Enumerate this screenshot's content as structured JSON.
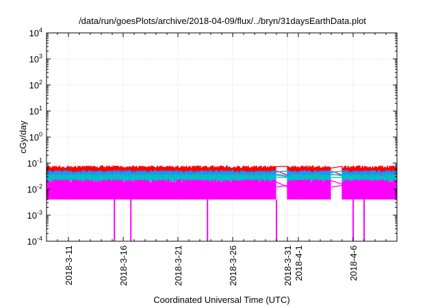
{
  "chart_data": {
    "type": "line",
    "title": "/data/run/goesPlots/archive/2018-04-09/flux/../bryn/31daysEarthData.plot",
    "xlabel": "Coordinated Universal Time (UTC)",
    "ylabel": "cGy/day",
    "yscale": "log",
    "ylim": [
      0.0001,
      10000
    ],
    "y_ticks": [
      {
        "base": "10",
        "exp": "-4",
        "value": 0.0001
      },
      {
        "base": "10",
        "exp": "-3",
        "value": 0.001
      },
      {
        "base": "10",
        "exp": "-2",
        "value": 0.01
      },
      {
        "base": "10",
        "exp": "-1",
        "value": 0.1
      },
      {
        "base": "10",
        "exp": "0",
        "value": 1
      },
      {
        "base": "10",
        "exp": "1",
        "value": 10
      },
      {
        "base": "10",
        "exp": "2",
        "value": 100
      },
      {
        "base": "10",
        "exp": "3",
        "value": 1000
      },
      {
        "base": "10",
        "exp": "4",
        "value": 10000
      }
    ],
    "xlim": [
      "2018-03-09",
      "2018-04-10"
    ],
    "x_ticks": [
      {
        "label": "2018-3-11",
        "date": "2018-03-11"
      },
      {
        "label": "2018-3-16",
        "date": "2018-03-16"
      },
      {
        "label": "2018-3-21",
        "date": "2018-03-21"
      },
      {
        "label": "2018-3-26",
        "date": "2018-03-26"
      },
      {
        "label": "2018-3-31",
        "date": "2018-03-31"
      },
      {
        "label": "2018-4-1",
        "date": "2018-04-01"
      },
      {
        "label": "2018-4-6",
        "date": "2018-04-06"
      }
    ],
    "grid": true,
    "data_gaps": [
      {
        "start": "2018-03-30",
        "end": "2018-03-31"
      },
      {
        "start": "2018-04-04",
        "end": "2018-04-05"
      }
    ],
    "series": [
      {
        "color": "#ff0000",
        "level": 0.05,
        "upper": 0.075,
        "lower": 0.032
      },
      {
        "color": "#1e90ff",
        "level": 0.038,
        "upper": 0.05,
        "lower": 0.026
      },
      {
        "color": "#00c0c0",
        "level": 0.028,
        "upper": 0.036,
        "lower": 0.02
      },
      {
        "color": "#ff00ff",
        "level": 0.012,
        "upper": 0.022,
        "lower": 0.004
      }
    ],
    "drops": [
      {
        "date": "2018-03-15.2",
        "value": 0.0001
      },
      {
        "date": "2018-03-16.7",
        "value": 0.0001
      },
      {
        "date": "2018-03-23.7",
        "value": 0.0001
      },
      {
        "date": "2018-03-30.0",
        "value": 0.0001
      },
      {
        "date": "2018-04-06.0",
        "value": 0.0001
      },
      {
        "date": "2018-04-07.0",
        "value": 0.0001
      }
    ]
  }
}
